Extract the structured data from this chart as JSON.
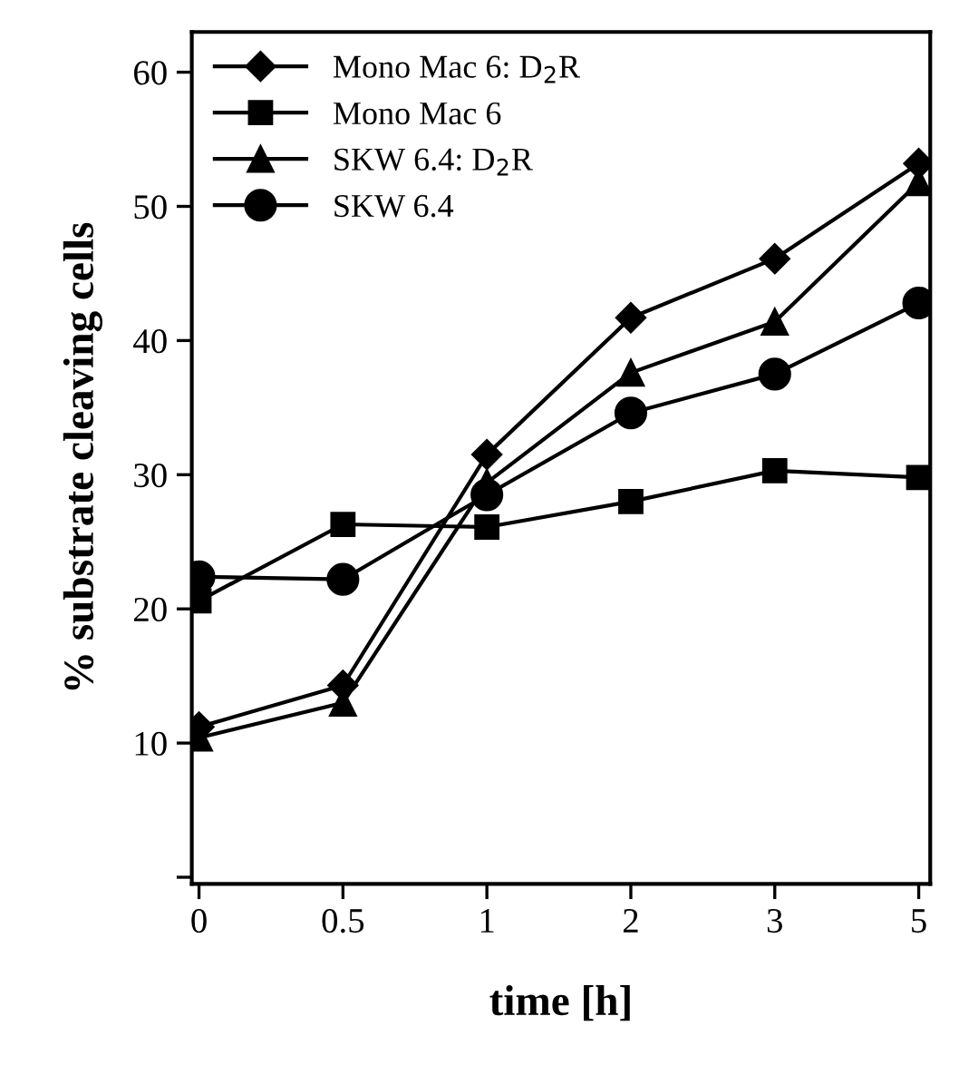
{
  "chart_data": {
    "type": "line",
    "xlabel": "time [h]",
    "ylabel": "% substrate cleaving cells",
    "categories": [
      "0",
      "0.5",
      "1",
      "2",
      "3",
      "5"
    ],
    "series": [
      {
        "name": "Mono Mac 6: D$_{2}$R",
        "color": "#000000",
        "marker": "diamond",
        "values": [
          11.2,
          14.3,
          31.5,
          41.7,
          46.1,
          53.2
        ]
      },
      {
        "name": "Mono Mac 6",
        "color": "#000000",
        "marker": "square",
        "values": [
          20.6,
          26.3,
          26.1,
          28.0,
          30.3,
          29.8
        ]
      },
      {
        "name": "SKW 6.4: D$_{2}$R",
        "color": "#000000",
        "marker": "triangle",
        "values": [
          10.4,
          13.0,
          29.4,
          37.6,
          41.4,
          51.8
        ]
      },
      {
        "name": "SKW 6.4",
        "color": "#000000",
        "marker": "circle",
        "values": [
          22.4,
          22.2,
          28.5,
          34.6,
          37.5,
          42.8
        ]
      }
    ],
    "ylim": [
      -0.5,
      63
    ],
    "yticks": [
      {
        "value": 0,
        "label": null
      },
      10,
      20,
      30,
      40,
      50,
      60
    ],
    "grid": false,
    "legend": "top left",
    "line_style": "solid"
  }
}
